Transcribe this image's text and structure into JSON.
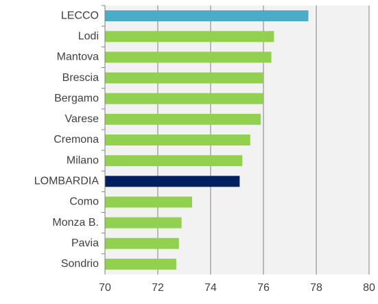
{
  "chart_data": {
    "type": "hbar",
    "categories": [
      "LECCO",
      "Lodi",
      "Mantova",
      "Brescia",
      "Bergamo",
      "Varese",
      "Cremona",
      "Milano",
      "LOMBARDIA",
      "Como",
      "Monza B.",
      "Pavia",
      "Sondrio"
    ],
    "values": [
      77.7,
      76.4,
      76.3,
      76.0,
      76.0,
      75.9,
      75.5,
      75.2,
      75.1,
      73.3,
      72.9,
      72.8,
      72.7
    ],
    "colors": [
      "#4bacc6",
      "#92d050",
      "#92d050",
      "#92d050",
      "#92d050",
      "#92d050",
      "#92d050",
      "#92d050",
      "#002060",
      "#92d050",
      "#92d050",
      "#92d050",
      "#92d050"
    ],
    "xlim": [
      70,
      80
    ],
    "xticks": [
      70,
      72,
      74,
      76,
      78,
      80
    ],
    "grid": true
  }
}
